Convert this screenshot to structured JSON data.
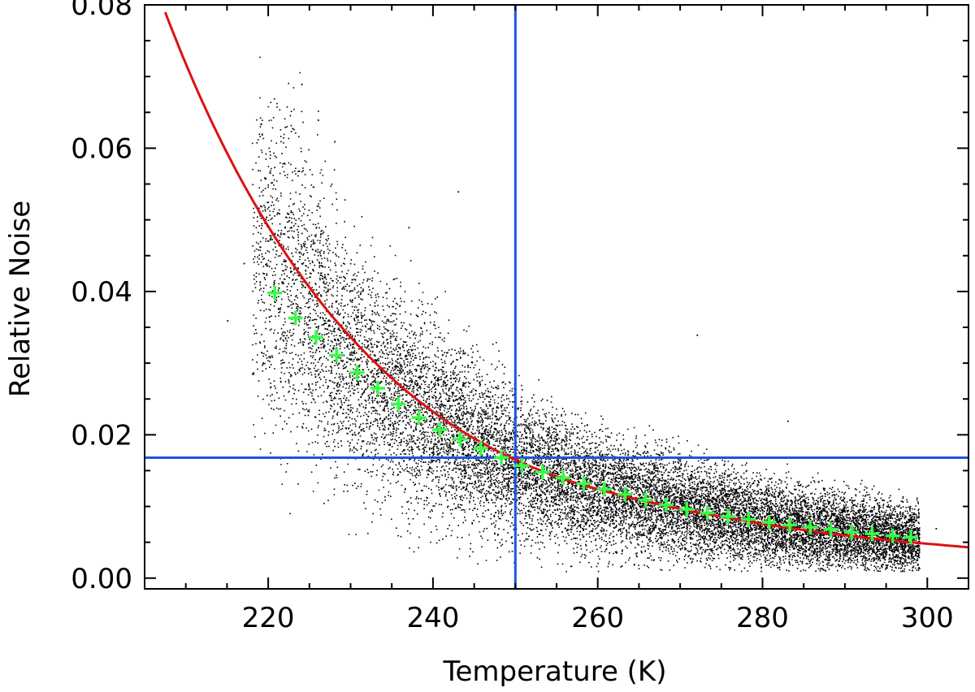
{
  "chart_data": {
    "type": "scatter",
    "title": "",
    "xlabel": "Temperature (K)",
    "ylabel": "Relative Noise",
    "xlim": [
      205,
      305
    ],
    "ylim": [
      -0.0015,
      0.08
    ],
    "x_ticks": [
      220,
      240,
      260,
      280,
      300
    ],
    "x_tick_labels": [
      "220",
      "240",
      "260",
      "280",
      "300"
    ],
    "y_ticks": [
      0.0,
      0.02,
      0.04,
      0.06,
      0.08
    ],
    "y_tick_labels": [
      "0.00",
      "0.02",
      "0.04",
      "0.06",
      "0.08"
    ],
    "grid": false,
    "legend": "none",
    "series": [
      {
        "kind": "scatter-cloud",
        "color": "#000000",
        "description_points": [
          [
            220,
            0.045
          ],
          [
            225,
            0.038
          ],
          [
            230,
            0.03
          ],
          [
            235,
            0.026
          ],
          [
            240,
            0.022
          ],
          [
            245,
            0.019
          ],
          [
            250,
            0.016
          ],
          [
            255,
            0.014
          ],
          [
            260,
            0.012
          ],
          [
            265,
            0.011
          ],
          [
            270,
            0.01
          ],
          [
            275,
            0.009
          ],
          [
            280,
            0.008
          ],
          [
            285,
            0.007
          ],
          [
            290,
            0.0065
          ],
          [
            295,
            0.006
          ],
          [
            298,
            0.0055
          ]
        ]
      },
      {
        "kind": "binned-means",
        "marker": "plus",
        "color": "#33ff44",
        "x": [
          220.8,
          223.3,
          225.8,
          228.3,
          230.8,
          233.3,
          235.8,
          238.3,
          240.8,
          243.3,
          245.8,
          248.3,
          250.8,
          253.3,
          255.8,
          258.3,
          260.8,
          263.3,
          265.8,
          268.3,
          270.8,
          273.3,
          275.8,
          278.3,
          280.8,
          283.3,
          285.8,
          288.3,
          290.8,
          293.3,
          295.8,
          298.0
        ],
        "y": [
          0.0398,
          0.0363,
          0.0336,
          0.0311,
          0.0287,
          0.0265,
          0.0243,
          0.0224,
          0.0207,
          0.0194,
          0.0181,
          0.0168,
          0.0157,
          0.0148,
          0.014,
          0.0132,
          0.0124,
          0.0117,
          0.0109,
          0.0102,
          0.0096,
          0.0091,
          0.0086,
          0.0082,
          0.0078,
          0.0074,
          0.0071,
          0.0068,
          0.0064,
          0.0062,
          0.0059,
          0.0057
        ]
      },
      {
        "kind": "fit-curve",
        "color": "#dd1111",
        "x": [
          207,
          212,
          217,
          222,
          227,
          232,
          237,
          242,
          247,
          252,
          257,
          262,
          267,
          272,
          277,
          282,
          287,
          292,
          297,
          302,
          305
        ],
        "y": [
          0.0805,
          0.0665,
          0.055,
          0.0455,
          0.0376,
          0.0312,
          0.0259,
          0.0216,
          0.0182,
          0.0155,
          0.0134,
          0.0118,
          0.0104,
          0.0092,
          0.0082,
          0.0072,
          0.0064,
          0.0057,
          0.0051,
          0.0046,
          0.0043
        ]
      }
    ],
    "reference_lines": [
      {
        "orientation": "vertical",
        "x": 250,
        "color": "#1a55e8"
      },
      {
        "orientation": "horizontal",
        "y": 0.0168,
        "color": "#1a55e8"
      }
    ]
  }
}
